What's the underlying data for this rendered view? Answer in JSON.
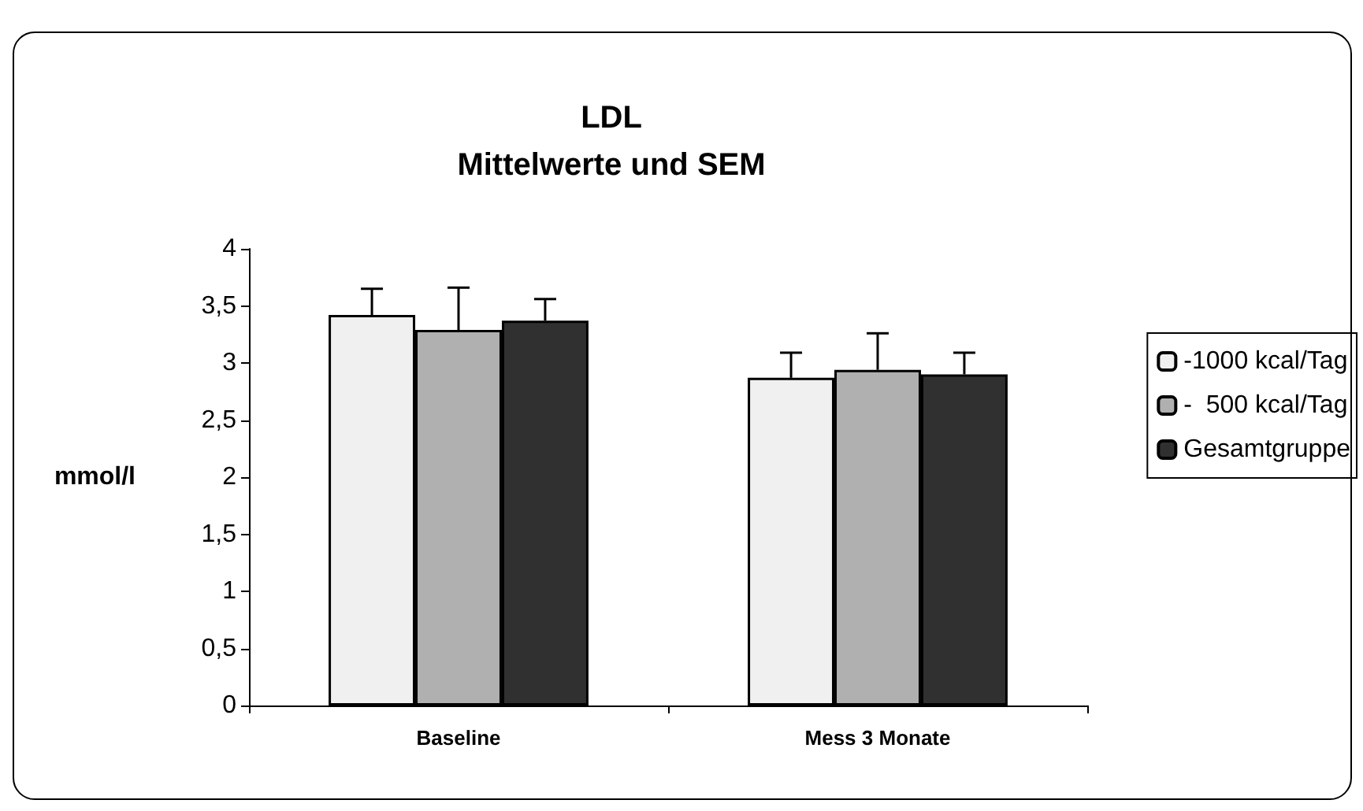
{
  "chart_data": {
    "type": "bar",
    "title": "LDL\nMittelwerte und SEM",
    "ylabel": "mmol/l",
    "categories": [
      "Baseline",
      "Mess 3 Monate"
    ],
    "series": [
      {
        "name": "-1000 kcal/Tag",
        "color": "#f0f0f0",
        "values": [
          3.42,
          2.87
        ],
        "errors": [
          [
            3.42,
            3.65
          ],
          [
            2.87,
            3.09
          ]
        ]
      },
      {
        "name": "-  500 kcal/Tag",
        "color": "#b0b0b0",
        "values": [
          3.29,
          2.94
        ],
        "errors": [
          [
            3.29,
            3.66
          ],
          [
            2.94,
            3.26
          ]
        ]
      },
      {
        "name": "Gesamtgruppe",
        "color": "#303030",
        "values": [
          3.37,
          2.9
        ],
        "errors": [
          [
            3.37,
            3.56
          ],
          [
            2.9,
            3.09
          ]
        ]
      }
    ],
    "ylim": [
      0,
      4
    ],
    "yticks": [
      0,
      {
        "value": 0.5,
        "label": "0,5"
      },
      1,
      {
        "value": 1.5,
        "label": "1,5"
      },
      2,
      {
        "value": 2.5,
        "label": "2,5"
      },
      3,
      {
        "value": 3.5,
        "label": "3,5"
      },
      4
    ],
    "grid": false,
    "legend": "right"
  }
}
